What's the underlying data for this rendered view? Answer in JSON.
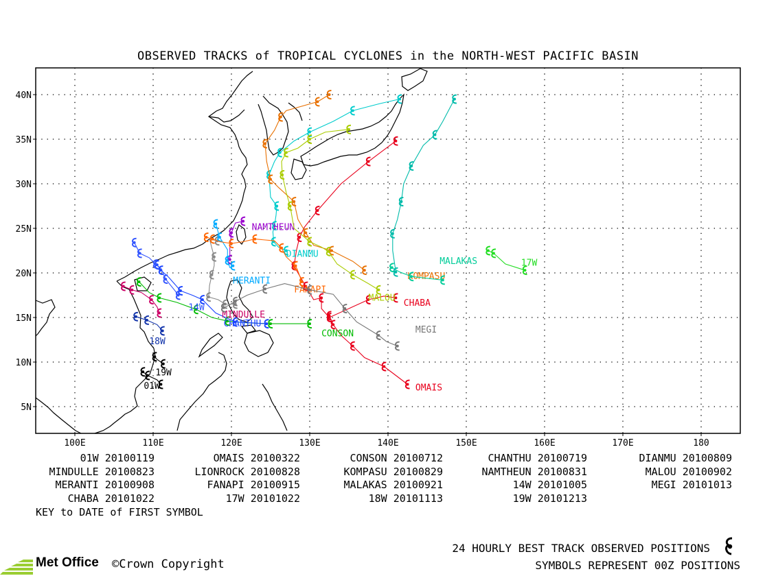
{
  "title": "OBSERVED TRACKS of TROPICAL CYCLONES in the NORTH-WEST PACIFIC BASIN",
  "axes": {
    "lon_labels": [
      "100E",
      "110E",
      "120E",
      "130E",
      "140E",
      "150E",
      "160E",
      "170E",
      "180"
    ],
    "lat_labels": [
      "40N",
      "35N",
      "30N",
      "25N",
      "20N",
      "15N",
      "10N",
      "5N"
    ]
  },
  "key": [
    [
      {
        "name": "01W",
        "date": "20100119"
      },
      {
        "name": "OMAIS",
        "date": "20100322"
      },
      {
        "name": "CONSON",
        "date": "20100712"
      },
      {
        "name": "CHANTHU",
        "date": "20100719"
      },
      {
        "name": "DIANMU",
        "date": "20100809"
      }
    ],
    [
      {
        "name": "MINDULLE",
        "date": "20100823"
      },
      {
        "name": "LIONROCK",
        "date": "20100828"
      },
      {
        "name": "KOMPASU",
        "date": "20100829"
      },
      {
        "name": "NAMTHEUN",
        "date": "20100831"
      },
      {
        "name": "MALOU",
        "date": "20100902"
      }
    ],
    [
      {
        "name": "MERANTI",
        "date": "20100908"
      },
      {
        "name": "FANAPI",
        "date": "20100915"
      },
      {
        "name": "MALAKAS",
        "date": "20100921"
      },
      {
        "name": "14W",
        "date": "20101005"
      },
      {
        "name": "MEGI",
        "date": "20101013"
      }
    ],
    [
      {
        "name": "CHABA",
        "date": "20101022"
      },
      {
        "name": "17W",
        "date": "20101022"
      },
      {
        "name": "18W",
        "date": "20101113"
      },
      {
        "name": "19W",
        "date": "20101213"
      }
    ]
  ],
  "key_note": "KEY to DATE of FIRST SYMBOL",
  "legend_line1": "24 HOURLY BEST TRACK OBSERVED POSITIONS",
  "legend_line2": "SYMBOLS REPRESENT 00Z POSITIONS",
  "logo_text": "Met Office",
  "copyright": "©Crown Copyright",
  "tracks": [
    {
      "name": "OMAIS",
      "label": "OMAIS",
      "color": "#e8001c",
      "label_at": [
        143.5,
        6.8
      ],
      "points": [
        [
          142.5,
          7.5
        ],
        [
          141,
          8.5
        ],
        [
          139.5,
          9.5
        ],
        [
          137,
          10.5
        ],
        [
          135.5,
          11.8
        ],
        [
          134,
          13
        ],
        [
          133,
          14.2
        ],
        [
          132.5,
          15.2
        ]
      ]
    },
    {
      "name": "CHABA",
      "label": "CHABA",
      "color": "#e8001c",
      "label_at": [
        142,
        16.3
      ],
      "points": [
        [
          141,
          17.2
        ],
        [
          139.5,
          17.4
        ],
        [
          137.5,
          17
        ],
        [
          135.5,
          16.2
        ],
        [
          132.5,
          15
        ],
        [
          131.5,
          16
        ],
        [
          131.5,
          17.2
        ],
        [
          130.5,
          17
        ],
        [
          129.5,
          18.5
        ],
        [
          128.5,
          20
        ],
        [
          128,
          20.8
        ],
        [
          128.3,
          22.5
        ],
        [
          128.7,
          24
        ],
        [
          129.3,
          25.1
        ],
        [
          131,
          27
        ],
        [
          134,
          30
        ],
        [
          137.5,
          32.5
        ],
        [
          141,
          34.8
        ]
      ]
    },
    {
      "name": "CONSON",
      "label": "CONSON",
      "color": "#00bb00",
      "label_at": [
        131.5,
        12.9
      ],
      "points": [
        [
          130,
          14.3
        ],
        [
          127,
          14.3
        ],
        [
          125,
          14.3
        ],
        [
          122,
          14.4
        ],
        [
          119.5,
          14.6
        ],
        [
          117.5,
          15
        ],
        [
          115.5,
          15.9
        ],
        [
          113,
          16.7
        ],
        [
          110.8,
          17.2
        ],
        [
          109.5,
          17.8
        ],
        [
          108.2,
          19
        ]
      ]
    },
    {
      "name": "CHANTHU",
      "label": "CHANTHU",
      "color": "#1a44ff",
      "label_at": [
        119,
        14.0
      ],
      "points": [
        [
          124.5,
          14.3
        ],
        [
          122.5,
          14.4
        ],
        [
          120.5,
          14.5
        ],
        [
          118,
          15.5
        ],
        [
          116.3,
          17
        ],
        [
          115,
          17.5
        ],
        [
          113.5,
          18
        ],
        [
          112,
          19.5
        ],
        [
          111,
          20.3
        ],
        [
          110.5,
          20.9
        ]
      ]
    },
    {
      "name": "DIANMU",
      "label": "DIANMU",
      "color": "#00cccc",
      "label_at": [
        127,
        21.8
      ],
      "points": [
        [
          127,
          22.5
        ],
        [
          126,
          22.9
        ],
        [
          125.4,
          23.5
        ],
        [
          125.3,
          24.6
        ],
        [
          125.5,
          25.3
        ],
        [
          125.7,
          26.5
        ],
        [
          125.8,
          27.5
        ],
        [
          125,
          28.5
        ],
        [
          124.8,
          31
        ],
        [
          125.5,
          32.5
        ],
        [
          126.2,
          33.5
        ],
        [
          128,
          34.8
        ],
        [
          130,
          35.8
        ],
        [
          133,
          37
        ],
        [
          135.5,
          38.2
        ],
        [
          139,
          39
        ],
        [
          141.5,
          39.5
        ]
      ]
    },
    {
      "name": "MINDULLE",
      "label": "MINDULLE",
      "color": "#cc0066",
      "label_at": [
        118.8,
        15.0
      ],
      "points": [
        [
          110.8,
          15.5
        ],
        [
          110.5,
          16.2
        ],
        [
          109.8,
          17
        ],
        [
          108.5,
          17.8
        ],
        [
          107.3,
          18.1
        ],
        [
          106.2,
          18.5
        ]
      ]
    },
    {
      "name": "LIONROCK",
      "label": "",
      "color": "#888888",
      "label_at": [
        0,
        0
      ],
      "points": [
        [
          118.2,
          23.6
        ],
        [
          117.2,
          23.8
        ],
        [
          117.8,
          21.8
        ],
        [
          117.8,
          20.8
        ],
        [
          117.5,
          19.8
        ],
        [
          117.2,
          18.6
        ],
        [
          117.1,
          17.3
        ],
        [
          118.3,
          17
        ],
        [
          119.2,
          16.5
        ],
        [
          120.5,
          16.5
        ]
      ]
    },
    {
      "name": "KOMPASU",
      "label": "KOMPASU",
      "color": "#e87000",
      "label_at": [
        142.5,
        19.3
      ],
      "points": [
        [
          137,
          20.3
        ],
        [
          135.5,
          21.3
        ],
        [
          132.8,
          22.5
        ],
        [
          130.5,
          23.1
        ],
        [
          129.5,
          24.5
        ],
        [
          128.5,
          26
        ],
        [
          128,
          28
        ],
        [
          126,
          29.6
        ],
        [
          125,
          30.5
        ],
        [
          124.5,
          32.5
        ],
        [
          124.3,
          34.5
        ],
        [
          125.5,
          36
        ],
        [
          126.3,
          37.5
        ],
        [
          127,
          38.2
        ],
        [
          131,
          39.2
        ],
        [
          132.5,
          40
        ]
      ]
    },
    {
      "name": "NAMTHEUN",
      "label": "NAMTHEUN",
      "color": "#9900cc",
      "label_at": [
        122.6,
        24.8
      ],
      "points": [
        [
          121.5,
          25.8
        ],
        [
          120.5,
          25.6
        ],
        [
          120,
          24.5
        ],
        [
          119.8,
          22.8
        ],
        [
          119.8,
          21.5
        ]
      ]
    },
    {
      "name": "MALOU",
      "label": "MALOU",
      "color": "#aacc00",
      "label_at": [
        137.5,
        16.9
      ],
      "points": [
        [
          138.8,
          18.1
        ],
        [
          137.5,
          18.8
        ],
        [
          135.5,
          19.8
        ],
        [
          133.5,
          21
        ],
        [
          132.4,
          22.4
        ],
        [
          131.5,
          22.9
        ],
        [
          130,
          23.5
        ],
        [
          128,
          25
        ],
        [
          127.5,
          27.5
        ],
        [
          127,
          29
        ],
        [
          126.5,
          31
        ],
        [
          126.4,
          32.5
        ],
        [
          127,
          33.5
        ],
        [
          128.5,
          34
        ],
        [
          130,
          35
        ],
        [
          132,
          35.8
        ],
        [
          135,
          36.1
        ]
      ]
    },
    {
      "name": "MERANTI",
      "label": "MERANTI",
      "color": "#00aaff",
      "label_at": [
        120.2,
        18.8
      ],
      "points": [
        [
          120.2,
          20.8
        ],
        [
          119.8,
          20.6
        ],
        [
          119.5,
          21.4
        ],
        [
          119.5,
          22.6
        ],
        [
          118.5,
          24
        ],
        [
          118,
          25.5
        ]
      ]
    },
    {
      "name": "FANAPI",
      "label": "FANAPI",
      "color": "#ff6600",
      "label_at": [
        128,
        17.8
      ],
      "points": [
        [
          129,
          19
        ],
        [
          128.5,
          20.2
        ],
        [
          128.2,
          20.8
        ],
        [
          127,
          21.8
        ],
        [
          126.4,
          22.8
        ],
        [
          125.5,
          23.6
        ],
        [
          123,
          23.8
        ],
        [
          121.5,
          23.5
        ],
        [
          120,
          23.3
        ],
        [
          118.5,
          23.5
        ],
        [
          117.6,
          23.8
        ],
        [
          116.8,
          24
        ]
      ]
    },
    {
      "name": "MALAKAS",
      "label": "MALAKAS",
      "color": "#00cc99",
      "label_at": [
        146.6,
        21.0
      ],
      "points": [
        [
          147,
          19.2
        ],
        [
          145,
          19.4
        ],
        [
          143,
          19.6
        ],
        [
          141.5,
          20.1
        ],
        [
          140.5,
          20.6
        ]
      ]
    },
    {
      "name": "14W",
      "label": "14W",
      "color": "#3355ff",
      "label_at": [
        114.5,
        15.8
      ],
      "points": [
        [
          113.2,
          17.5
        ],
        [
          112.8,
          18
        ],
        [
          111.6,
          19.3
        ],
        [
          111,
          20.5
        ],
        [
          110.3,
          21
        ],
        [
          109.5,
          21.7
        ],
        [
          108.3,
          22.2
        ],
        [
          107.6,
          23.4
        ]
      ]
    },
    {
      "name": "MEGI",
      "label": "MEGI",
      "color": "#777777",
      "label_at": [
        143.5,
        13.3
      ],
      "points": [
        [
          141.2,
          11.8
        ],
        [
          139.8,
          12.3
        ],
        [
          138.8,
          13
        ],
        [
          136,
          14.5
        ],
        [
          134.5,
          16
        ],
        [
          133,
          17.6
        ],
        [
          130,
          18.1
        ],
        [
          126.8,
          18.8
        ],
        [
          124.3,
          18.2
        ],
        [
          122,
          17.5
        ],
        [
          120.5,
          16.8
        ],
        [
          119.5,
          16.3
        ],
        [
          119,
          16.1
        ]
      ]
    },
    {
      "name": "17W",
      "label": "17W",
      "color": "#22dd22",
      "label_at": [
        157,
        20.8
      ],
      "points": [
        [
          157.5,
          20.3
        ],
        [
          155,
          21
        ],
        [
          153.5,
          22.2
        ],
        [
          152.8,
          22.5
        ]
      ]
    },
    {
      "name": "18W",
      "label": "18W",
      "color": "#1133aa",
      "label_at": [
        109.5,
        12.0
      ],
      "points": [
        [
          111.2,
          13.5
        ],
        [
          110.5,
          14.2
        ],
        [
          109.2,
          14.7
        ],
        [
          107.8,
          15.1
        ]
      ]
    },
    {
      "name": "19W",
      "label": "19W",
      "color": "#000000",
      "label_at": [
        110.3,
        8.5
      ],
      "points": [
        [
          111.3,
          9.8
        ],
        [
          110.5,
          10.3
        ],
        [
          110.2,
          10.6
        ]
      ]
    },
    {
      "name": "01W",
      "label": "01W",
      "color": "#000000",
      "label_at": [
        108.8,
        7.0
      ],
      "points": [
        [
          111,
          7.5
        ],
        [
          110.5,
          8
        ],
        [
          109.3,
          8.5
        ],
        [
          108.7,
          8.9
        ]
      ]
    },
    {
      "name": "TEAL",
      "label": "",
      "color": "#00bbaa",
      "label_at": [
        0,
        0
      ],
      "points": [
        [
          148.5,
          39.5
        ],
        [
          147,
          37
        ],
        [
          146,
          35.5
        ],
        [
          144.5,
          34.3
        ],
        [
          143,
          32
        ],
        [
          142,
          30
        ],
        [
          141.7,
          28
        ],
        [
          141.2,
          26
        ],
        [
          140.6,
          24.4
        ],
        [
          140.6,
          22.5
        ],
        [
          141,
          20.1
        ]
      ]
    }
  ]
}
